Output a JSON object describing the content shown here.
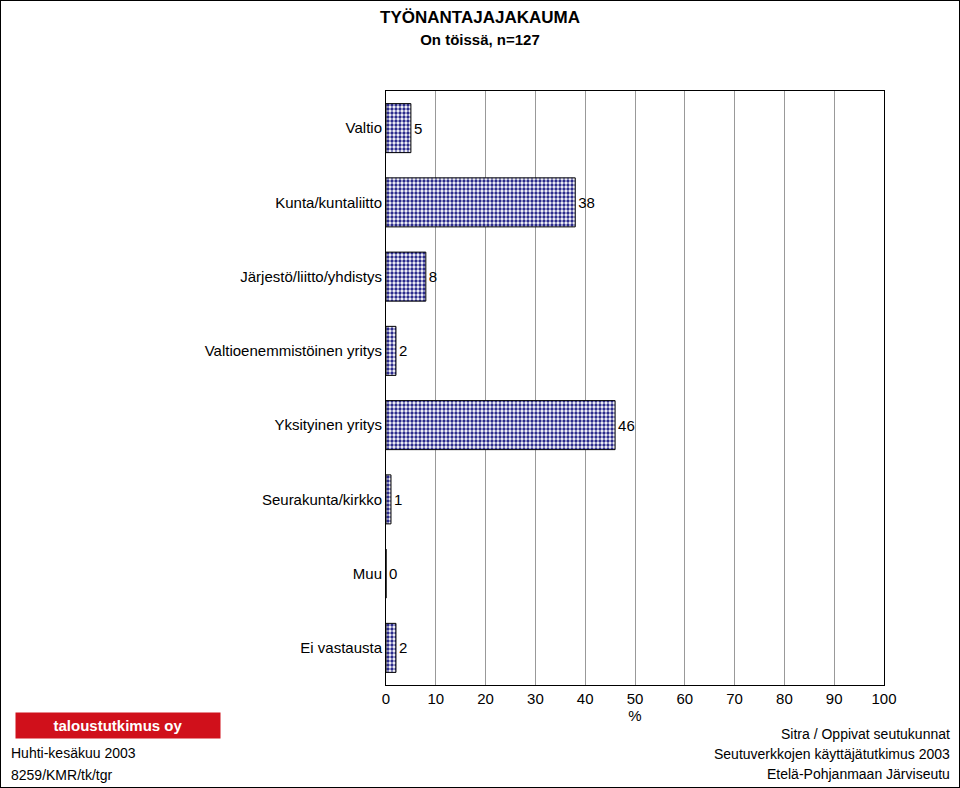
{
  "chart_data": {
    "type": "bar",
    "orientation": "horizontal",
    "title": "TYÖNANTAJAJAKAUMA",
    "subtitle": "On töissä, n=127",
    "x_label": "%",
    "categories": [
      "Valtio",
      "Kunta/kuntaliitto",
      "Järjestö/liitto/yhdistys",
      "Valtioenemmistöinen yritys",
      "Yksityinen yritys",
      "Seurakunta/kirkko",
      "Muu",
      "Ei vastausta"
    ],
    "values": [
      5,
      38,
      8,
      2,
      46,
      1,
      0,
      2
    ],
    "color": "#2b2b8c",
    "xlim": [
      0,
      100
    ],
    "xticks": [
      0,
      10,
      20,
      30,
      40,
      50,
      60,
      70,
      80,
      90,
      100
    ],
    "grid": true,
    "data_labels": true
  },
  "footer": {
    "logo": "taloustutkimus oy",
    "left": [
      "Huhti-kesäkuu 2003",
      "8259/KMR/tk/tgr"
    ],
    "right": [
      "Sitra / Oppivat seutukunnat",
      "Seutuverkkojen käyttäjätutkimus 2003",
      "Etelä-Pohjanmaan Järviseutu"
    ]
  }
}
